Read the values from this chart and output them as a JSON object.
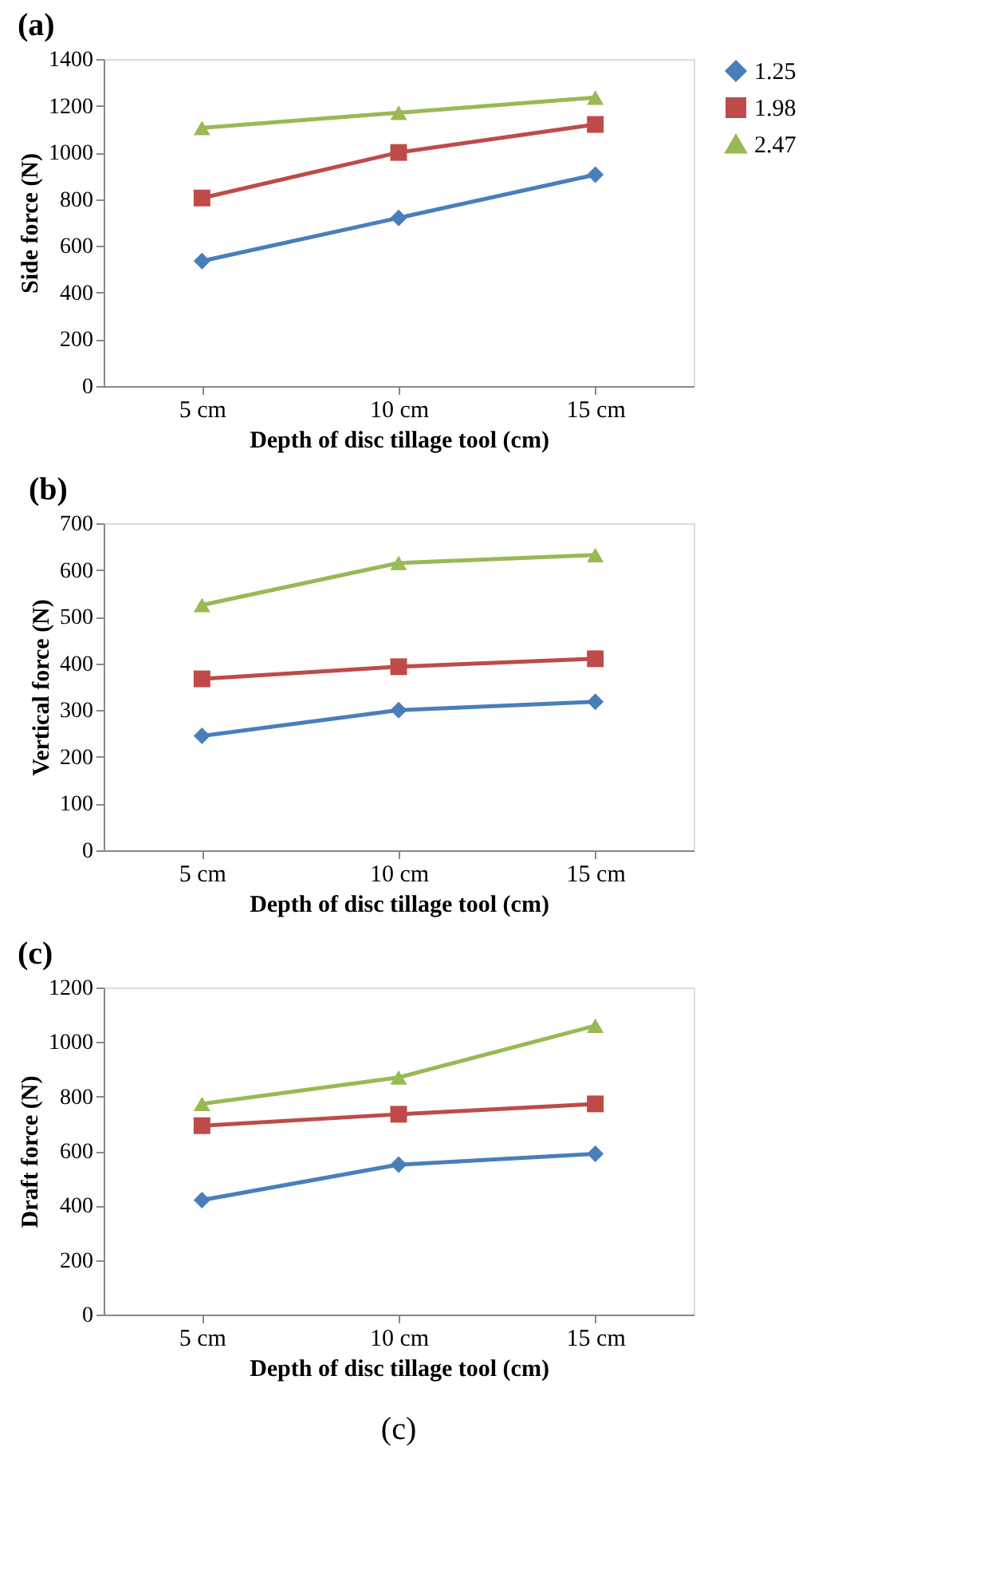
{
  "chart_data": [
    {
      "type": "line",
      "title": "(a)",
      "xlabel": "Depth of disc tillage tool (cm)",
      "ylabel": "Side force (N)",
      "categories": [
        "5 cm",
        "10 cm",
        "15 cm"
      ],
      "ylim": [
        0,
        1400
      ],
      "yticks": [
        0,
        200,
        400,
        600,
        800,
        1000,
        1200,
        1400
      ],
      "grid": false,
      "legend": "right",
      "line_style": "solid",
      "series": [
        {
          "name": "1.25",
          "color": "#4a7ebb",
          "marker": "diamond",
          "values": [
            535,
            720,
            905
          ]
        },
        {
          "name": "1.98",
          "color": "#be4b48",
          "marker": "square",
          "values": [
            805,
            1000,
            1120
          ]
        },
        {
          "name": "2.47",
          "color": "#98b954",
          "marker": "triangle",
          "values": [
            1105,
            1170,
            1235
          ]
        }
      ]
    },
    {
      "type": "line",
      "title": "(b)",
      "xlabel": "Depth of disc tillage tool (cm)",
      "ylabel": "Vertical force (N)",
      "categories": [
        "5 cm",
        "10 cm",
        "15 cm"
      ],
      "ylim": [
        0,
        700
      ],
      "yticks": [
        0,
        100,
        200,
        300,
        400,
        500,
        600,
        700
      ],
      "grid": false,
      "legend": "right",
      "line_style": "solid",
      "series": [
        {
          "name": "1.25",
          "color": "#4a7ebb",
          "marker": "diamond",
          "values": [
            245,
            300,
            318
          ]
        },
        {
          "name": "1.98",
          "color": "#be4b48",
          "marker": "square",
          "values": [
            367,
            393,
            410
          ]
        },
        {
          "name": "2.47",
          "color": "#98b954",
          "marker": "triangle",
          "values": [
            525,
            615,
            632
          ]
        }
      ]
    },
    {
      "type": "line",
      "title": "(c)",
      "xlabel": "Depth of disc tillage tool (cm)",
      "ylabel": "Draft force (N)",
      "categories": [
        "5 cm",
        "10 cm",
        "15 cm"
      ],
      "ylim": [
        0,
        1200
      ],
      "yticks": [
        0,
        200,
        400,
        600,
        800,
        1000,
        1200
      ],
      "grid": false,
      "legend": "right",
      "line_style": "solid",
      "annotations": [
        "(c)"
      ],
      "series": [
        {
          "name": "1.25",
          "color": "#4a7ebb",
          "marker": "diamond",
          "values": [
            420,
            550,
            590
          ]
        },
        {
          "name": "1.98",
          "color": "#be4b48",
          "marker": "square",
          "values": [
            693,
            735,
            773
          ]
        },
        {
          "name": "2.47",
          "color": "#98b954",
          "marker": "triangle",
          "values": [
            773,
            870,
            1060
          ]
        }
      ]
    }
  ]
}
